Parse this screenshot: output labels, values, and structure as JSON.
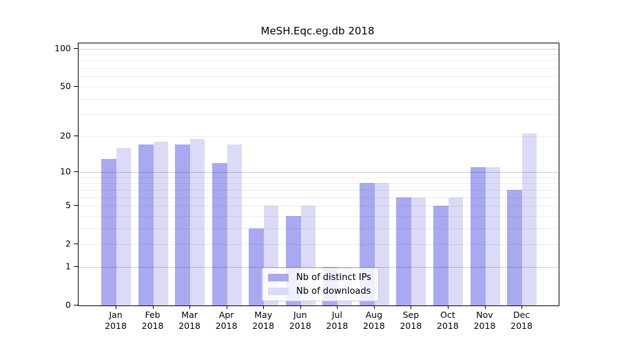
{
  "chart_data": {
    "type": "bar",
    "title": "MeSH.Eqc.eg.db 2018",
    "categories": [
      "Jan",
      "Feb",
      "Mar",
      "Apr",
      "May",
      "Jun",
      "Jul",
      "Aug",
      "Sep",
      "Oct",
      "Nov",
      "Dec"
    ],
    "x_tick_second_line": "2018",
    "series": [
      {
        "name": "Nb of distinct IPs",
        "color": "#a9a9f1",
        "values": [
          13,
          17,
          17,
          12,
          3,
          4,
          1,
          8,
          6,
          5,
          11,
          7
        ]
      },
      {
        "name": "Nb of downloads",
        "color": "#dbdbf8",
        "values": [
          16,
          18,
          19,
          17,
          5,
          5,
          1,
          8,
          6,
          6,
          11,
          21
        ]
      }
    ],
    "yscale": "log1p",
    "ylim": [
      0,
      110
    ],
    "y_tick_labels": [
      "100",
      "50",
      "20",
      "10",
      "5",
      "2",
      "1",
      "0"
    ],
    "y_tick_values": [
      100,
      50,
      20,
      10,
      5,
      2,
      1,
      0
    ],
    "y_grid_minor": [
      2,
      3,
      4,
      5,
      6,
      7,
      8,
      9,
      20,
      30,
      40,
      50,
      60,
      70,
      80,
      90
    ],
    "y_grid_major": [
      1,
      10,
      100
    ],
    "grid": "on",
    "legend_position": "lower center",
    "xlabel": "",
    "ylabel": ""
  }
}
